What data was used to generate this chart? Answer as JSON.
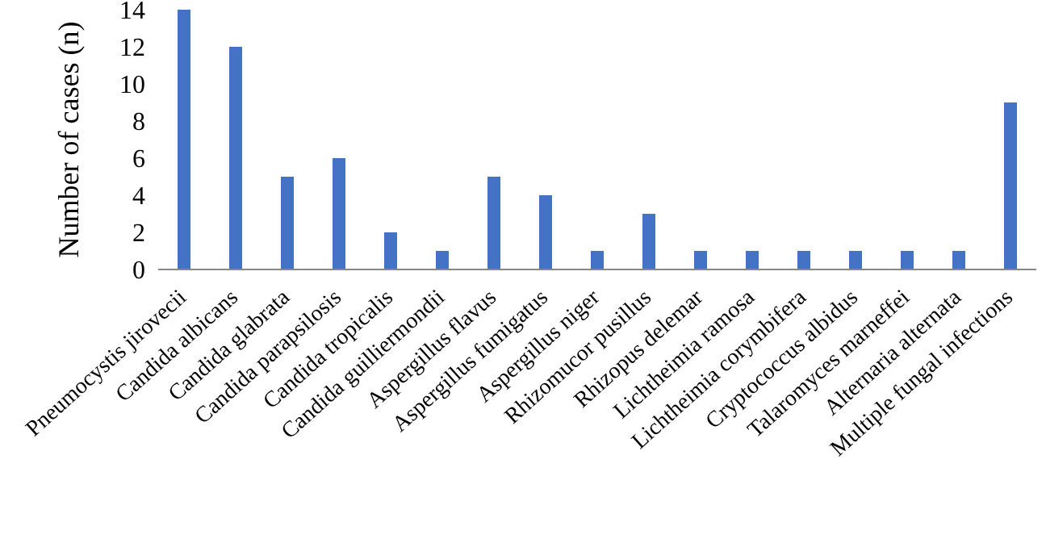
{
  "chart_data": {
    "type": "bar",
    "ylabel": "Number of cases (n)",
    "categories": [
      "Pneumocystis jirovecii",
      "Candida albicans",
      "Candida glabrata",
      "Candida parapsilosis",
      "Candida tropicalis",
      "Candida guilliermondii",
      "Aspergillus flavus",
      "Aspergillus fumigatus",
      "Aspergillus niger",
      "Rhizomucor pusillus",
      "Rhizopus delemar",
      "Lichtheimia ramosa",
      "Lichtheimia corymbifera",
      "Cryptococcus albidus",
      "Talaromyces marneffei",
      "Alternaria alternata",
      "Multiple fungal infections"
    ],
    "values": [
      14,
      12,
      5,
      6,
      2,
      1,
      5,
      4,
      1,
      3,
      1,
      1,
      1,
      1,
      1,
      1,
      9
    ],
    "color": "#4472c4",
    "ylim": [
      0,
      14
    ],
    "yticks": [
      0,
      2,
      4,
      6,
      8,
      10,
      12,
      14
    ],
    "grid": false,
    "legend": false
  }
}
